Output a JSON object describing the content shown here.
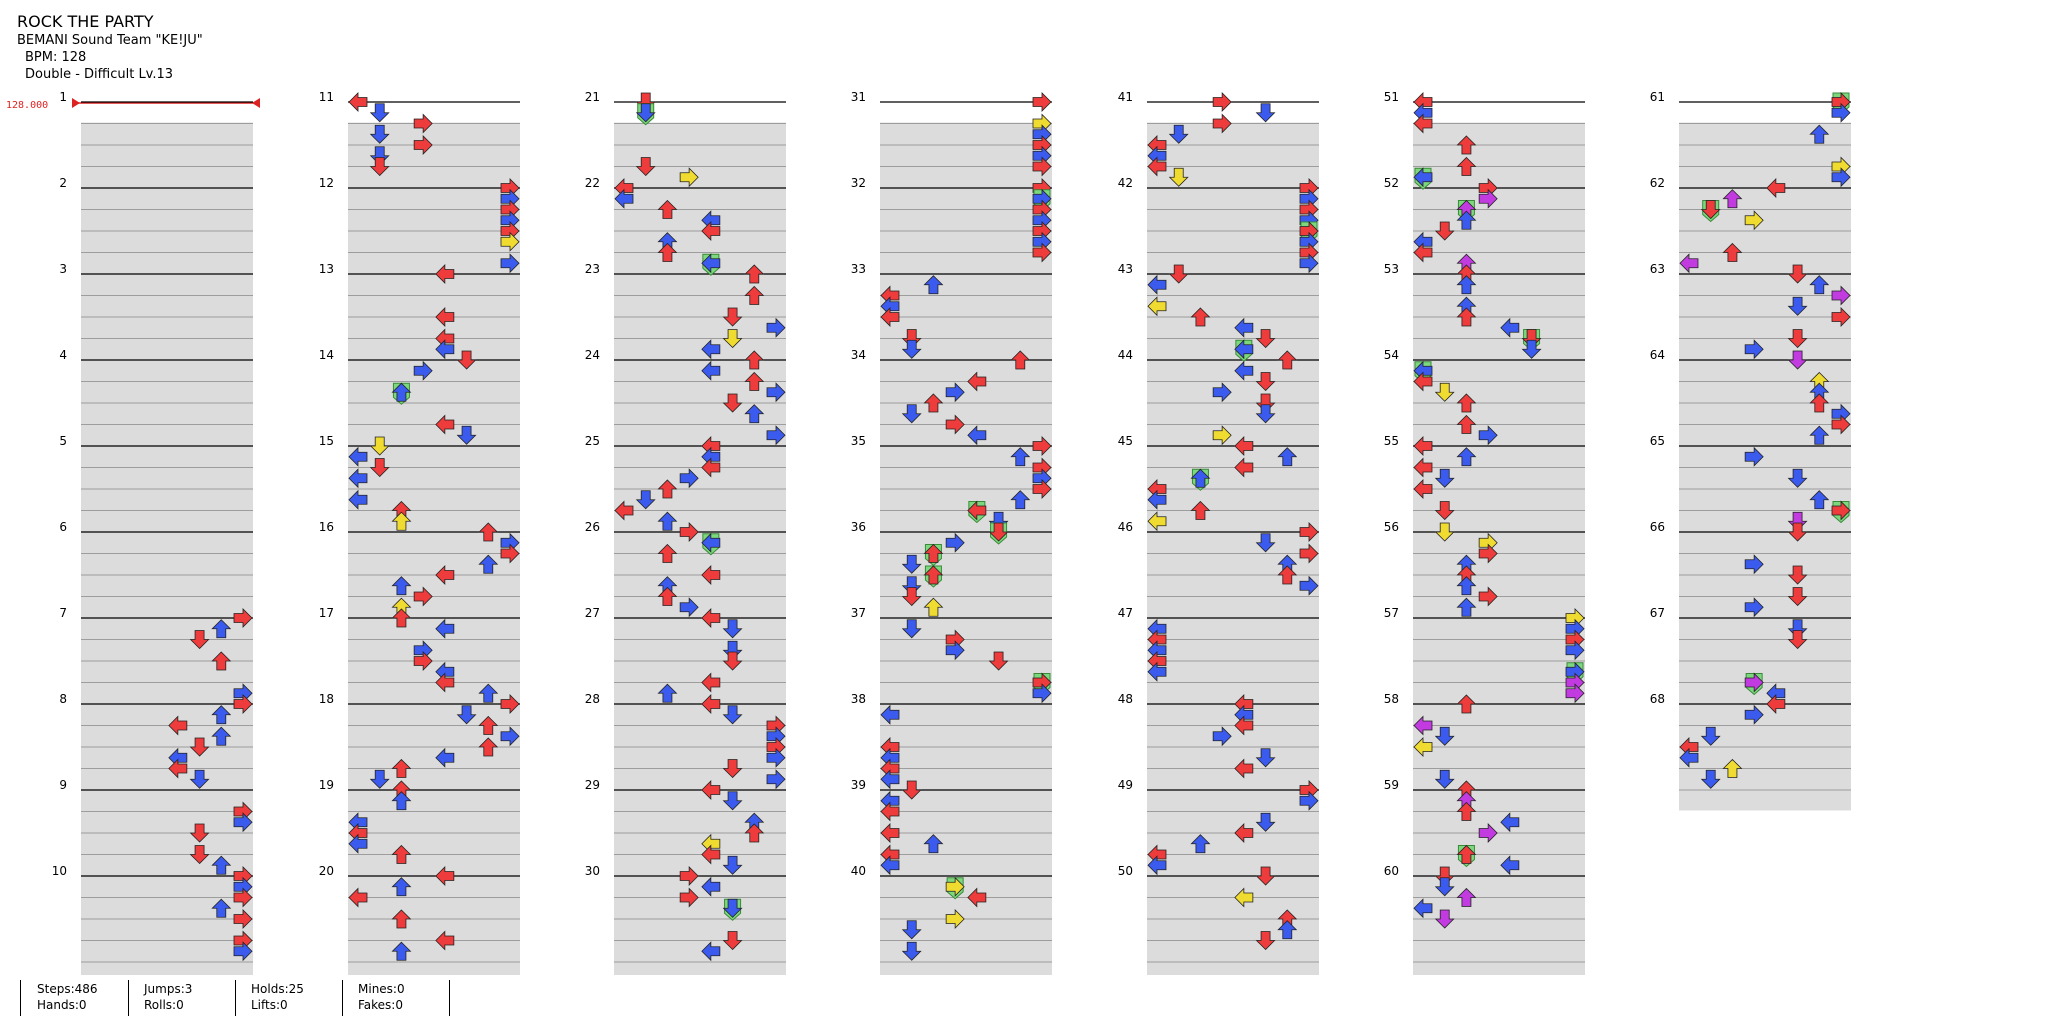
{
  "song": {
    "title": "ROCK THE PARTY",
    "artist": "BEMANI Sound Team \"KE!JU\"",
    "bpm": "BPM: 128",
    "difficulty": "Double - Difficult Lv.13"
  },
  "bpm_marker": "128.000",
  "measures": {
    "count": 68,
    "labels": [
      "1",
      "2",
      "3",
      "4",
      "5",
      "6",
      "7",
      "8",
      "9",
      "10",
      "11",
      "12",
      "13",
      "14",
      "15",
      "16",
      "17",
      "18",
      "19",
      "20",
      "21",
      "22",
      "23",
      "24",
      "25",
      "26",
      "27",
      "28",
      "29",
      "30",
      "31",
      "32",
      "33",
      "34",
      "35",
      "36",
      "37",
      "38",
      "39",
      "40",
      "41",
      "42",
      "43",
      "44",
      "45",
      "46",
      "47",
      "48",
      "49",
      "50",
      "51",
      "52",
      "53",
      "54",
      "55",
      "56",
      "57",
      "58",
      "59",
      "60",
      "61",
      "62",
      "63",
      "64",
      "65",
      "66",
      "67",
      "68"
    ]
  },
  "colors": {
    "quarter": "#ee3b3b",
    "eighth": "#3b5bee",
    "sixteenth": "#f0dc30",
    "twelfth": "#c23be0",
    "hold_head": "#7dd87d",
    "bpm_marker": "#dd2222",
    "band": "#dcdcdc"
  },
  "stats": [
    {
      "line1": "Steps:486",
      "line2": "Hands:0"
    },
    {
      "line1": "Jumps:3",
      "line2": "Rolls:0"
    },
    {
      "line1": "Holds:25",
      "line2": "Lifts:0"
    },
    {
      "line1": "Mines:0",
      "line2": "Fakes:0"
    }
  ]
}
